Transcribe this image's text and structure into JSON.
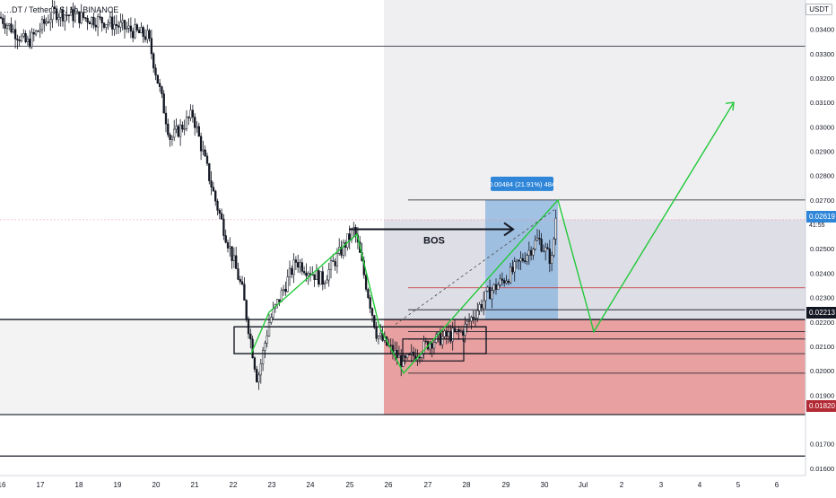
{
  "chart_data": {
    "type": "candlestick",
    "title": "…DT / Tether…S, 1h, BINANCE",
    "currency": "USDT",
    "ylim": [
      0.0157,
      0.0352
    ],
    "y_ticks": [
      "0.03400",
      "0.03300",
      "0.03200",
      "0.03100",
      "0.03000",
      "0.02900",
      "0.02800",
      "0.02700",
      "0.02500",
      "0.02400",
      "0.02300",
      "0.02200",
      "0.02100",
      "0.02000",
      "0.01900",
      "0.01700",
      "0.01600"
    ],
    "x_ticks": [
      "16",
      "17",
      "18",
      "19",
      "20",
      "21",
      "22",
      "23",
      "24",
      "25",
      "26",
      "27",
      "28",
      "29",
      "30",
      "Jul",
      "2",
      "3",
      "4",
      "5",
      "6"
    ],
    "last_price": "0.02619",
    "last_price_sub": "41:55",
    "levels": [
      {
        "label": "0.02213",
        "value": 0.02213,
        "color": "#131722"
      },
      {
        "label": "0.01820",
        "value": 0.0182,
        "color": "#b22833"
      }
    ],
    "horizontal_lines": [
      0.0333,
      0.027,
      0.0234,
      0.0225,
      0.0216,
      0.0213,
      0.0207,
      0.0199,
      0.0182,
      0.0165
    ],
    "bos_label": "BOS",
    "measure_label": "0.00484 (21.91%) 484",
    "colors": {
      "up": "#26a69a",
      "down": "#131722",
      "green_path": "#22c93a",
      "stop_zone": "#e8a0a0",
      "target_zone": "#8fb6e0",
      "grey_zone": "#e9e9ee",
      "label_blue": "#2f86d8",
      "red_tag": "#b22833",
      "black_tag": "#131722"
    }
  }
}
